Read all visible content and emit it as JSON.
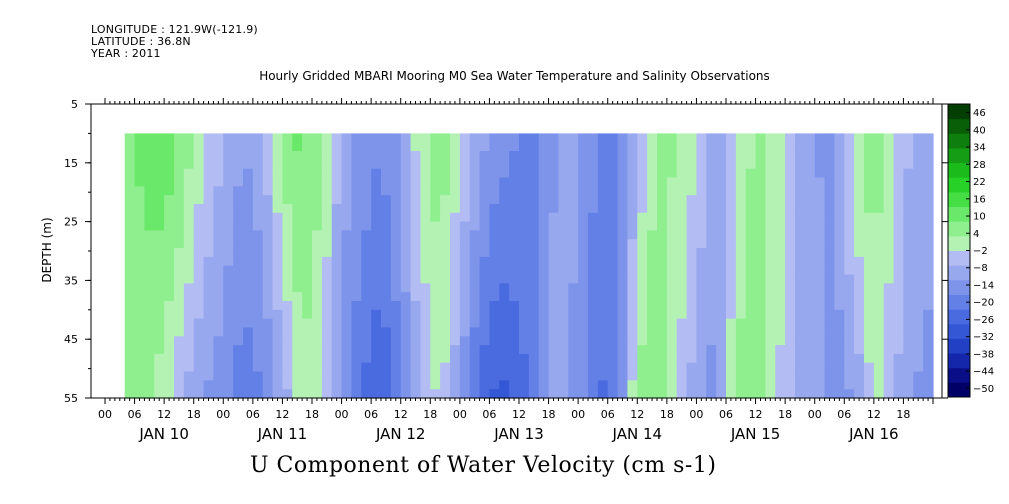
{
  "header": {
    "longitude": "LONGITUDE : 121.9W(-121.9)",
    "latitude": "LATITUDE : 36.8N",
    "year": "YEAR : 2011"
  },
  "title": "Hourly Gridded MBARI Mooring M0 Sea Water Temperature and Salinity Observations",
  "bottom_title": "U Component of Water Velocity (cm s-1)",
  "chart_data": {
    "type": "heatmap",
    "variable": "U Component of Water Velocity (cm s-1)",
    "ylabel": "DEPTH (m)",
    "y_range": [
      5,
      55
    ],
    "y_inverted": true,
    "y_ticks": [
      5,
      15,
      25,
      35,
      45,
      55
    ],
    "data_depth_range": [
      10,
      55
    ],
    "x_range_hours": [
      0,
      168
    ],
    "data_start_hour": 4,
    "hour_ticks": [
      "00",
      "06",
      "12",
      "18"
    ],
    "day_labels": [
      "JAN 10",
      "JAN 11",
      "JAN 12",
      "JAN 13",
      "JAN 14",
      "JAN 15",
      "JAN 16"
    ],
    "colorbar": {
      "levels": [
        -50,
        -44,
        -38,
        -32,
        -26,
        -20,
        -14,
        -8,
        -2,
        4,
        10,
        16,
        22,
        28,
        34,
        40,
        46
      ],
      "negative_colors": [
        "#000066",
        "#0a0f88",
        "#1426aa",
        "#2240c4",
        "#3457d6",
        "#4a6be0",
        "#6380e6",
        "#7d94ea",
        "#98a8ef",
        "#b3bcf3"
      ],
      "positive_colors": [
        "#b4f2b4",
        "#8fef8f",
        "#6ae86a",
        "#45df45",
        "#27d127",
        "#1bbb1b",
        "#159e15",
        "#0e7f0e",
        "#085f08",
        "#033f03"
      ]
    },
    "time_profile_hours": [
      4,
      8,
      12,
      16,
      20,
      24,
      28,
      32,
      36,
      40,
      44,
      48,
      52,
      56,
      60,
      64,
      68,
      72,
      76,
      80,
      84,
      88,
      92,
      96,
      100,
      104,
      108,
      112,
      116,
      120,
      124,
      128,
      132,
      136,
      140,
      144,
      148,
      152,
      156,
      160,
      164,
      168
    ],
    "surface_u": [
      12,
      18,
      20,
      14,
      4,
      -2,
      -8,
      -4,
      12,
      18,
      10,
      -4,
      -10,
      -14,
      -6,
      8,
      14,
      4,
      -6,
      -12,
      -14,
      -16,
      -6,
      -8,
      -14,
      -16,
      -2,
      12,
      10,
      4,
      -8,
      2,
      12,
      8,
      -2,
      -8,
      -10,
      8,
      14,
      6,
      -4,
      -6
    ],
    "bottom_u": [
      16,
      12,
      6,
      -2,
      -8,
      -12,
      -18,
      -14,
      -6,
      8,
      4,
      -12,
      -20,
      -26,
      -16,
      -4,
      6,
      -8,
      -22,
      -28,
      -24,
      -14,
      -4,
      -10,
      -22,
      -16,
      12,
      14,
      4,
      -6,
      -10,
      12,
      16,
      6,
      -4,
      -2,
      -10,
      -8,
      6,
      -2,
      -8,
      -10
    ]
  }
}
